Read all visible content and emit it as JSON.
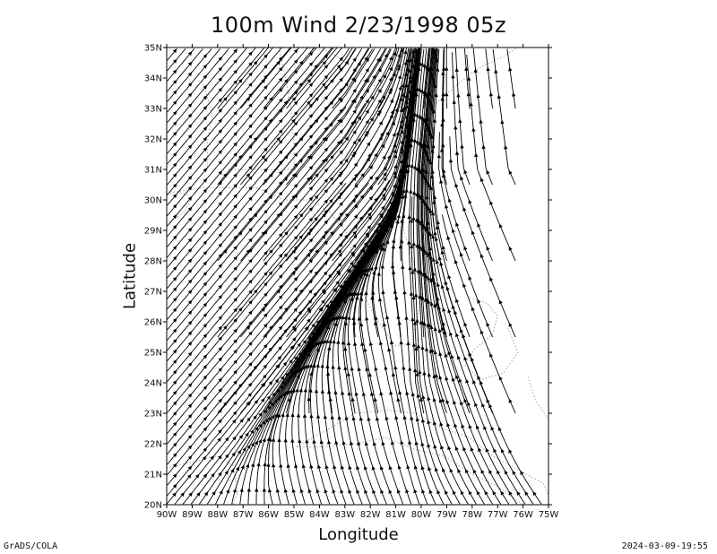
{
  "chart_data": {
    "type": "streamline",
    "title": "100m Wind 2/23/1998 05z",
    "xlabel": "Longitude",
    "ylabel": "Latitude",
    "x_ticks": [
      "90W",
      "89W",
      "88W",
      "87W",
      "86W",
      "85W",
      "84W",
      "83W",
      "82W",
      "81W",
      "80W",
      "79W",
      "78W",
      "77W",
      "76W",
      "75W"
    ],
    "y_ticks": [
      "20N",
      "21N",
      "22N",
      "23N",
      "24N",
      "25N",
      "26N",
      "27N",
      "28N",
      "29N",
      "30N",
      "31N",
      "32N",
      "33N",
      "34N",
      "35N"
    ],
    "xlim": [
      -90,
      -75
    ],
    "ylim": [
      20,
      35
    ],
    "grid": false,
    "colors": {
      "streamline": "#000000",
      "coastline": "#9a9a9a"
    }
  },
  "footer": {
    "left": "GrADS/COLA",
    "right": "2024-03-09-19:55"
  }
}
